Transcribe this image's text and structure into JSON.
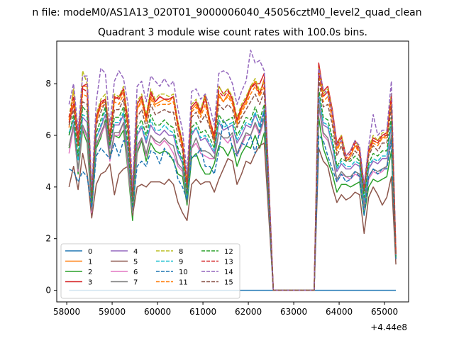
{
  "page_title": "n file: modeM0/AS1A13_020T01_9000006040_45056cztM0_level2_quad_clean",
  "chart_data": {
    "type": "line",
    "title": "Quadrant 3 module wise count rates with 100.0s bins.",
    "xlabel": "",
    "ylabel": "",
    "x_offset_label": "+4.44e8",
    "xlim": [
      57780,
      65530
    ],
    "ylim": [
      -0.45,
      9.65
    ],
    "xticks": [
      "58000",
      "59000",
      "60000",
      "61000",
      "62000",
      "63000",
      "64000",
      "65000"
    ],
    "yticks": [
      "0",
      "2",
      "4",
      "6",
      "8"
    ],
    "legend_position": "lower-left",
    "legend_columns": 4,
    "x": [
      58050,
      58150,
      58250,
      58350,
      58450,
      58550,
      58650,
      58750,
      58850,
      58950,
      59050,
      59150,
      59250,
      59350,
      59450,
      59550,
      59650,
      59750,
      59850,
      59950,
      60050,
      60150,
      60250,
      60350,
      60450,
      60550,
      60650,
      60750,
      60850,
      60950,
      61050,
      61150,
      61250,
      61350,
      61450,
      61550,
      61650,
      61750,
      61850,
      61950,
      62050,
      62150,
      62250,
      62350,
      62550,
      62750,
      63000,
      63300,
      63450,
      63550,
      63650,
      63750,
      63850,
      63950,
      64050,
      64150,
      64250,
      64350,
      64450,
      64550,
      64650,
      64750,
      64850,
      64950,
      65050,
      65150,
      65250
    ],
    "series": [
      {
        "name": "0",
        "color": "#1f77b4",
        "dash": "solid",
        "values": [
          0,
          0,
          0,
          0,
          0,
          0,
          0,
          0,
          0,
          0,
          0,
          0,
          0,
          0,
          0,
          0,
          0,
          0,
          0,
          0,
          0,
          0,
          0,
          0,
          0,
          0,
          0,
          0,
          0,
          0,
          0,
          0,
          0,
          0,
          0,
          0,
          0,
          0,
          0,
          0,
          0,
          0,
          0,
          0,
          0,
          0,
          0,
          0,
          0,
          0,
          0,
          0,
          0,
          0,
          0,
          0,
          0,
          0,
          0,
          0,
          0,
          0,
          0,
          0,
          0,
          0,
          0
        ]
      },
      {
        "name": "1",
        "color": "#ff7f0e",
        "dash": "solid",
        "values": [
          6.3,
          7.8,
          5.6,
          7.9,
          7.9,
          3.6,
          6.5,
          7.2,
          7.3,
          5.7,
          7.5,
          7.4,
          7.7,
          6.3,
          3.6,
          7.0,
          7.4,
          6.6,
          7.5,
          7.2,
          7.3,
          7.4,
          7.3,
          7.5,
          6.3,
          5.5,
          4.0,
          7.0,
          7.2,
          6.8,
          7.5,
          6.4,
          5.8,
          7.6,
          7.3,
          7.6,
          7.3,
          6.5,
          7.0,
          7.3,
          7.8,
          8.1,
          7.6,
          8.2,
          0,
          0,
          0,
          0,
          0,
          8.6,
          7.5,
          7.7,
          6.8,
          5.5,
          5.8,
          5.0,
          5.2,
          5.6,
          5.4,
          3.9,
          5.3,
          5.8,
          5.7,
          5.9,
          6.0,
          7.4,
          1.4
        ]
      },
      {
        "name": "2",
        "color": "#2ca02c",
        "dash": "solid",
        "values": [
          5.5,
          6.4,
          4.5,
          6.2,
          5.7,
          3.0,
          5.5,
          5.9,
          6.6,
          5.2,
          6.0,
          5.9,
          6.2,
          4.6,
          2.7,
          5.3,
          5.8,
          5.0,
          5.7,
          5.4,
          5.3,
          5.4,
          5.3,
          5.0,
          4.5,
          4.4,
          3.3,
          5.1,
          5.3,
          4.8,
          4.5,
          4.5,
          4.9,
          5.6,
          5.5,
          5.2,
          5.6,
          4.8,
          5.3,
          5.6,
          5.5,
          6.0,
          5.5,
          6.1,
          0,
          0,
          0,
          0,
          0,
          6.7,
          5.5,
          5.0,
          4.5,
          3.8,
          4.1,
          4.1,
          4.0,
          4.1,
          4.2,
          2.9,
          4.0,
          4.3,
          4.2,
          4.3,
          4.4,
          5.4,
          1.2
        ]
      },
      {
        "name": "3",
        "color": "#d62728",
        "dash": "solid",
        "values": [
          6.5,
          7.2,
          5.7,
          7.9,
          8.0,
          3.7,
          6.7,
          7.3,
          7.4,
          5.9,
          7.4,
          7.5,
          7.8,
          6.6,
          3.7,
          7.2,
          7.5,
          6.7,
          7.7,
          7.3,
          7.5,
          7.4,
          7.4,
          7.5,
          6.5,
          5.7,
          4.1,
          7.1,
          7.3,
          6.9,
          7.6,
          6.6,
          5.9,
          7.9,
          7.6,
          7.8,
          7.4,
          6.6,
          7.1,
          7.4,
          7.9,
          8.0,
          8.0,
          8.4,
          0,
          0,
          0,
          0,
          0,
          8.8,
          7.7,
          7.9,
          7.0,
          5.7,
          6.0,
          5.2,
          5.4,
          5.8,
          5.5,
          4.0,
          5.5,
          5.9,
          5.8,
          6.0,
          6.1,
          7.5,
          1.4
        ]
      },
      {
        "name": "4",
        "color": "#9467bd",
        "dash": "solid",
        "values": [
          6.0,
          6.6,
          5.1,
          6.7,
          6.5,
          3.3,
          5.9,
          6.3,
          6.8,
          5.5,
          6.4,
          6.4,
          6.8,
          5.3,
          3.1,
          6.0,
          6.3,
          5.7,
          6.4,
          6.1,
          6.0,
          6.2,
          6.0,
          6.0,
          5.3,
          4.9,
          3.6,
          6.0,
          6.3,
          5.8,
          5.9,
          5.6,
          5.3,
          6.5,
          6.2,
          6.3,
          6.4,
          5.7,
          6.0,
          6.4,
          6.3,
          6.8,
          6.4,
          7.0,
          0,
          0,
          0,
          0,
          0,
          7.5,
          6.4,
          6.3,
          5.6,
          4.6,
          4.9,
          4.7,
          4.7,
          4.9,
          4.8,
          3.4,
          4.7,
          5.0,
          4.9,
          5.1,
          5.1,
          6.4,
          1.3
        ]
      },
      {
        "name": "5",
        "color": "#8c564b",
        "dash": "solid",
        "values": [
          4.0,
          4.8,
          3.9,
          5.3,
          4.5,
          2.8,
          4.1,
          4.5,
          4.6,
          4.9,
          3.7,
          4.5,
          4.7,
          4.8,
          2.9,
          4.0,
          4.1,
          4.0,
          4.2,
          4.2,
          4.2,
          4.1,
          4.3,
          4.1,
          3.4,
          3.0,
          2.7,
          4.1,
          4.3,
          4.1,
          4.2,
          4.2,
          3.8,
          4.3,
          4.7,
          5.1,
          5.0,
          4.1,
          4.5,
          5.0,
          4.9,
          5.3,
          5.6,
          5.7,
          0,
          0,
          0,
          0,
          0,
          5.5,
          5.0,
          4.8,
          4.0,
          3.4,
          3.7,
          3.5,
          3.6,
          3.8,
          3.7,
          2.2,
          3.6,
          4.0,
          3.7,
          3.3,
          3.6,
          4.4,
          1.0
        ]
      },
      {
        "name": "6",
        "color": "#e377c2",
        "dash": "solid",
        "values": [
          5.3,
          6.3,
          4.6,
          6.3,
          5.9,
          3.0,
          5.7,
          6.0,
          6.4,
          5.0,
          6.0,
          6.0,
          6.5,
          4.7,
          3.0,
          5.4,
          5.9,
          5.2,
          6.0,
          5.7,
          5.6,
          5.8,
          5.6,
          5.3,
          4.8,
          4.6,
          3.5,
          5.5,
          5.7,
          5.3,
          5.2,
          5.1,
          5.1,
          6.1,
          5.9,
          5.7,
          6.0,
          5.2,
          5.6,
          6.0,
          6.0,
          6.4,
          6.0,
          6.6,
          0,
          0,
          0,
          0,
          0,
          7.1,
          6.0,
          5.8,
          5.2,
          4.2,
          4.5,
          4.4,
          4.3,
          4.5,
          4.4,
          3.1,
          4.3,
          4.6,
          4.5,
          4.6,
          4.8,
          5.9,
          1.3
        ]
      },
      {
        "name": "7",
        "color": "#7f7f7f",
        "dash": "solid",
        "values": [
          5.6,
          6.4,
          4.7,
          6.4,
          6.0,
          3.1,
          5.6,
          6.1,
          6.5,
          5.1,
          6.1,
          6.1,
          6.5,
          4.9,
          3.0,
          5.6,
          5.9,
          5.3,
          6.0,
          5.8,
          5.7,
          5.9,
          5.7,
          5.6,
          4.9,
          4.7,
          3.4,
          5.5,
          5.9,
          5.4,
          5.4,
          5.3,
          5.1,
          6.1,
          5.9,
          5.9,
          6.1,
          5.3,
          5.7,
          6.1,
          6.0,
          6.5,
          6.1,
          6.7,
          0,
          0,
          0,
          0,
          0,
          7.2,
          6.1,
          5.9,
          5.2,
          4.3,
          4.6,
          4.4,
          4.4,
          4.6,
          4.5,
          3.2,
          4.4,
          4.7,
          4.6,
          4.7,
          4.8,
          6.0,
          1.2
        ]
      },
      {
        "name": "8",
        "color": "#bcbd22",
        "dash": "dashed",
        "values": [
          6.7,
          7.8,
          5.9,
          8.5,
          8.0,
          3.7,
          6.8,
          7.4,
          7.6,
          6.0,
          7.6,
          7.5,
          7.9,
          6.6,
          3.7,
          7.3,
          7.6,
          6.8,
          7.8,
          7.4,
          7.6,
          7.6,
          7.5,
          7.6,
          6.5,
          5.8,
          4.1,
          7.2,
          7.4,
          7.0,
          7.6,
          6.6,
          6.0,
          7.9,
          7.6,
          7.8,
          7.5,
          6.7,
          7.2,
          7.5,
          7.9,
          8.2,
          7.7,
          8.1,
          0,
          0,
          0,
          0,
          0,
          8.6,
          7.6,
          7.8,
          6.9,
          5.6,
          6.0,
          5.2,
          5.4,
          5.8,
          5.5,
          4.0,
          5.5,
          6.0,
          5.8,
          6.1,
          6.1,
          7.6,
          1.4
        ]
      },
      {
        "name": "9",
        "color": "#17becf",
        "dash": "dashed",
        "values": [
          6.1,
          6.6,
          5.0,
          6.8,
          6.7,
          3.3,
          5.9,
          6.4,
          7.0,
          5.6,
          6.5,
          6.5,
          6.9,
          5.5,
          3.2,
          6.1,
          6.4,
          5.8,
          6.6,
          6.2,
          6.2,
          6.4,
          6.2,
          6.1,
          5.4,
          5.0,
          3.6,
          6.1,
          6.3,
          5.9,
          6.0,
          5.7,
          5.4,
          6.6,
          6.3,
          6.4,
          6.5,
          5.8,
          6.2,
          6.5,
          6.4,
          6.9,
          6.3,
          7.0,
          0,
          0,
          0,
          0,
          0,
          7.6,
          6.5,
          6.4,
          5.7,
          4.7,
          5.0,
          4.8,
          4.8,
          5.0,
          4.9,
          3.5,
          4.8,
          5.1,
          5.0,
          5.2,
          5.2,
          6.5,
          1.3
        ]
      },
      {
        "name": "10",
        "color": "#1f77b4",
        "dash": "dashed",
        "values": [
          4.7,
          4.6,
          4.2,
          4.6,
          4.4,
          3.2,
          5.2,
          5.5,
          5.3,
          5.1,
          5.7,
          5.2,
          5.8,
          5.7,
          3.2,
          4.8,
          5.0,
          4.8,
          5.4,
          5.3,
          4.9,
          5.5,
          5.2,
          5.1,
          4.3,
          4.0,
          3.5,
          5.2,
          5.2,
          5.5,
          4.8,
          4.8,
          4.5,
          5.4,
          6.6,
          6.3,
          5.5,
          5.2,
          5.7,
          5.6,
          6.0,
          5.3,
          6.2,
          6.9,
          0,
          0,
          0,
          0,
          0,
          6.0,
          5.8,
          5.2,
          4.7,
          4.2,
          4.5,
          4.2,
          4.3,
          4.6,
          4.4,
          2.9,
          4.4,
          4.7,
          4.5,
          4.7,
          4.7,
          5.8,
          1.2
        ]
      },
      {
        "name": "11",
        "color": "#ff7f0e",
        "dash": "dashed",
        "values": [
          6.6,
          7.3,
          5.8,
          7.6,
          7.5,
          3.6,
          6.6,
          7.1,
          7.2,
          5.8,
          7.3,
          7.2,
          7.6,
          6.3,
          3.6,
          7.0,
          7.3,
          6.5,
          7.4,
          7.1,
          7.2,
          7.2,
          7.2,
          7.3,
          6.3,
          5.6,
          4.0,
          6.9,
          7.1,
          6.7,
          7.2,
          6.4,
          5.8,
          7.5,
          7.3,
          7.5,
          7.2,
          6.4,
          6.9,
          7.2,
          7.6,
          7.9,
          7.5,
          7.9,
          0,
          0,
          0,
          0,
          0,
          8.3,
          7.3,
          7.5,
          6.6,
          5.4,
          5.8,
          5.0,
          5.2,
          5.6,
          5.3,
          3.9,
          5.3,
          5.7,
          5.6,
          5.9,
          5.9,
          7.3,
          1.4
        ]
      },
      {
        "name": "12",
        "color": "#2ca02c",
        "dash": "dashed",
        "values": [
          6.0,
          6.8,
          5.2,
          7.1,
          6.9,
          3.4,
          6.1,
          6.6,
          7.1,
          5.6,
          6.7,
          6.7,
          7.1,
          5.6,
          3.3,
          6.3,
          6.6,
          6.0,
          6.8,
          6.4,
          6.4,
          6.6,
          6.4,
          6.3,
          5.5,
          5.1,
          3.7,
          6.3,
          6.5,
          6.1,
          6.2,
          5.9,
          5.5,
          6.8,
          6.5,
          6.6,
          6.7,
          6.0,
          6.3,
          6.7,
          6.6,
          7.1,
          6.6,
          7.2,
          0,
          0,
          0,
          0,
          0,
          7.8,
          6.7,
          6.6,
          5.9,
          4.8,
          5.1,
          5.0,
          5.0,
          5.2,
          5.0,
          3.6,
          4.9,
          5.3,
          5.2,
          5.4,
          5.4,
          6.7,
          1.3
        ]
      },
      {
        "name": "13",
        "color": "#d62728",
        "dash": "dashed",
        "values": [
          6.7,
          7.5,
          5.9,
          7.8,
          7.7,
          3.7,
          6.7,
          7.2,
          7.4,
          6.0,
          7.5,
          7.4,
          7.8,
          6.5,
          3.7,
          7.2,
          7.5,
          6.7,
          7.6,
          7.3,
          7.5,
          7.4,
          7.4,
          7.5,
          6.4,
          5.7,
          4.1,
          7.1,
          7.3,
          6.9,
          7.4,
          6.6,
          6.0,
          7.7,
          7.5,
          7.7,
          7.4,
          6.6,
          7.1,
          7.4,
          7.8,
          8.0,
          7.6,
          8.1,
          0,
          0,
          0,
          0,
          0,
          8.5,
          7.5,
          7.7,
          6.8,
          5.6,
          5.9,
          5.1,
          5.3,
          5.7,
          5.4,
          4.0,
          5.4,
          5.8,
          5.7,
          6.0,
          6.0,
          7.5,
          1.4
        ]
      },
      {
        "name": "14",
        "color": "#9467bd",
        "dash": "dashed",
        "values": [
          7.2,
          8.0,
          6.2,
          8.3,
          8.3,
          3.9,
          7.3,
          8.6,
          8.4,
          6.4,
          8.1,
          8.5,
          8.2,
          7.2,
          4.0,
          7.9,
          8.1,
          7.3,
          8.3,
          8.1,
          7.9,
          8.2,
          7.9,
          8.1,
          7.0,
          6.2,
          4.5,
          7.7,
          7.8,
          7.4,
          7.6,
          7.1,
          6.4,
          8.4,
          8.5,
          8.4,
          8.0,
          7.2,
          7.7,
          8.1,
          9.3,
          8.8,
          8.9,
          8.5,
          0,
          0,
          0,
          0,
          0,
          8.6,
          7.8,
          7.6,
          6.9,
          5.6,
          5.8,
          5.2,
          5.4,
          5.8,
          5.6,
          4.1,
          5.6,
          6.8,
          6.0,
          6.2,
          6.2,
          8.1,
          1.5
        ]
      },
      {
        "name": "15",
        "color": "#8c564b",
        "dash": "dashed",
        "values": [
          6.4,
          7.0,
          5.6,
          7.3,
          7.2,
          3.5,
          6.4,
          6.9,
          7.3,
          5.8,
          7.0,
          7.0,
          7.4,
          6.0,
          3.5,
          6.7,
          7.0,
          6.3,
          7.2,
          6.8,
          6.9,
          7.0,
          6.9,
          6.9,
          6.0,
          5.4,
          3.9,
          6.7,
          6.9,
          6.5,
          6.8,
          6.3,
          5.7,
          7.2,
          7.0,
          7.2,
          7.0,
          6.3,
          6.7,
          7.0,
          7.3,
          7.6,
          7.2,
          7.7,
          0,
          0,
          0,
          0,
          0,
          8.2,
          7.1,
          7.2,
          6.4,
          5.2,
          5.6,
          5.0,
          5.1,
          5.4,
          5.2,
          3.8,
          5.2,
          5.6,
          5.4,
          5.7,
          5.7,
          7.1,
          1.4
        ]
      }
    ]
  }
}
